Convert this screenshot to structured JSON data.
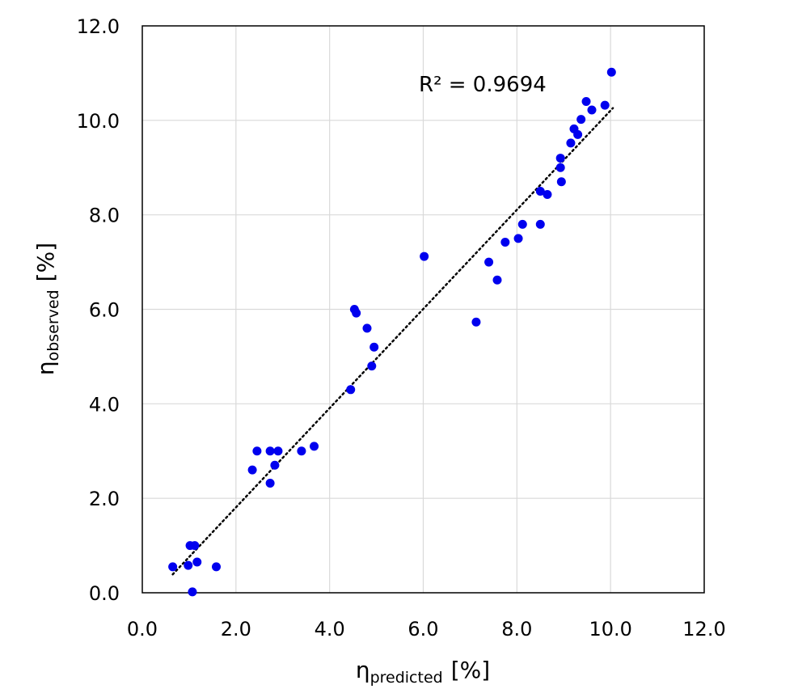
{
  "chart_data": {
    "type": "scatter",
    "xlabel": {
      "main": "η",
      "sub": "predicted",
      "unit": "[%]"
    },
    "ylabel": {
      "main": "η",
      "sub": "observed",
      "unit": "[%]"
    },
    "xlim": [
      0,
      12
    ],
    "ylim": [
      0,
      12
    ],
    "x_ticks": [
      "0.0",
      "2.0",
      "4.0",
      "6.0",
      "8.0",
      "10.0",
      "12.0"
    ],
    "y_ticks": [
      "0.0",
      "2.0",
      "4.0",
      "6.0",
      "8.0",
      "10.0",
      "12.0"
    ],
    "grid": true,
    "annotation": "R² = 0.9694",
    "trendline": {
      "style": "dotted",
      "x": [
        0.65,
        10.05
      ],
      "y": [
        0.39,
        10.26
      ]
    },
    "marker_color": "#0000ee",
    "series": [
      {
        "points": [
          [
            0.65,
            0.55
          ],
          [
            0.98,
            0.58
          ],
          [
            1.02,
            1.0
          ],
          [
            1.12,
            1.0
          ],
          [
            1.17,
            0.65
          ],
          [
            1.07,
            0.02
          ],
          [
            1.58,
            0.55
          ],
          [
            2.35,
            2.6
          ],
          [
            2.45,
            3.0
          ],
          [
            2.73,
            3.0
          ],
          [
            2.9,
            3.0
          ],
          [
            2.73,
            2.32
          ],
          [
            2.83,
            2.7
          ],
          [
            3.4,
            3.0
          ],
          [
            3.67,
            3.1
          ],
          [
            4.45,
            4.3
          ],
          [
            4.53,
            6.0
          ],
          [
            4.57,
            5.92
          ],
          [
            4.8,
            5.6
          ],
          [
            4.9,
            4.8
          ],
          [
            4.95,
            5.2
          ],
          [
            6.02,
            7.12
          ],
          [
            7.13,
            5.73
          ],
          [
            7.4,
            7.0
          ],
          [
            7.58,
            6.62
          ],
          [
            7.75,
            7.42
          ],
          [
            8.03,
            7.5
          ],
          [
            8.12,
            7.8
          ],
          [
            8.5,
            8.5
          ],
          [
            8.5,
            7.8
          ],
          [
            8.65,
            8.43
          ],
          [
            8.93,
            9.2
          ],
          [
            8.93,
            9.0
          ],
          [
            8.95,
            8.7
          ],
          [
            9.15,
            9.52
          ],
          [
            9.22,
            9.82
          ],
          [
            9.3,
            9.7
          ],
          [
            9.37,
            10.02
          ],
          [
            9.48,
            10.4
          ],
          [
            9.6,
            10.22
          ],
          [
            9.88,
            10.32
          ],
          [
            10.02,
            11.02
          ]
        ]
      }
    ]
  }
}
